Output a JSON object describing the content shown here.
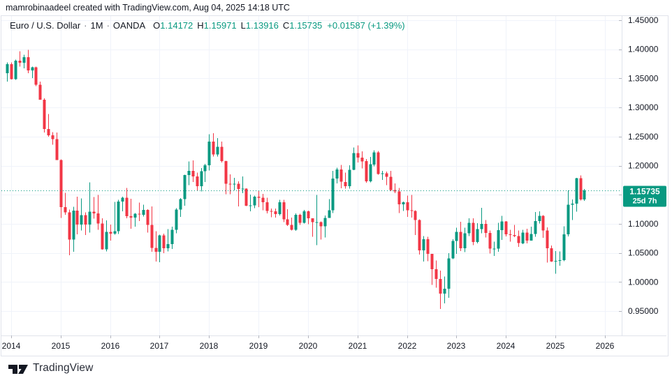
{
  "attribution": "mamrobinaadeel created with TradingView.com, Aug 04, 2025 14:18 UTC",
  "legend": {
    "symbol_title": "Euro / U.S. Dollar",
    "dot": "·",
    "interval": "1M",
    "exchange": "OANDA",
    "ohlc": [
      {
        "label": "O",
        "value": "1.14172"
      },
      {
        "label": "H",
        "value": "1.15971"
      },
      {
        "label": "L",
        "value": "1.13916"
      },
      {
        "label": "C",
        "value": "1.15735"
      }
    ],
    "change": "+0.01587 (+1.39%)"
  },
  "price_scale": {
    "ticks": [
      "1.45000",
      "1.40000",
      "1.35000",
      "1.30000",
      "1.25000",
      "1.20000",
      "1.15000",
      "1.10000",
      "1.05000",
      "1.00000",
      "0.95000"
    ],
    "last_price_label": "1.15735",
    "countdown": "25d 7h"
  },
  "time_scale": {
    "ticks": [
      "2014",
      "2015",
      "2016",
      "2017",
      "2018",
      "2019",
      "2020",
      "2021",
      "2022",
      "2023",
      "2024",
      "2025",
      "2026"
    ]
  },
  "footer": {
    "logo_text": "TradingView"
  },
  "colors": {
    "up": "#089981",
    "down": "#F23645",
    "text": "#131722",
    "grid": "#F0F3FA",
    "border": "#E0E3EB",
    "tick": "#B2B5BE",
    "badge_bg": "#089981",
    "badge_text": "#ffffff"
  },
  "chart_data": {
    "type": "candlestick",
    "title": "Euro / U.S. Dollar, 1M, OANDA",
    "symbol": "EURUSD",
    "timeframe": "1M",
    "start_month": "2013-12",
    "x_tick_years": [
      2014,
      2015,
      2016,
      2017,
      2018,
      2019,
      2020,
      2021,
      2022,
      2023,
      2024,
      2025,
      2026
    ],
    "y_ticks": [
      1.45,
      1.4,
      1.35,
      1.3,
      1.25,
      1.2,
      1.15,
      1.1,
      1.05,
      1.0,
      0.95
    ],
    "ylim": [
      0.933,
      1.4575
    ],
    "grid": true,
    "last_price": 1.15735,
    "candles": [
      [
        1.359,
        1.3772,
        1.3442,
        1.3743
      ],
      [
        1.3743,
        1.3772,
        1.348,
        1.3489
      ],
      [
        1.3489,
        1.3824,
        1.3475,
        1.3802
      ],
      [
        1.3802,
        1.3967,
        1.3704,
        1.377
      ],
      [
        1.377,
        1.3906,
        1.3673,
        1.3867
      ],
      [
        1.3867,
        1.3993,
        1.3586,
        1.3635
      ],
      [
        1.3635,
        1.37,
        1.3503,
        1.3692
      ],
      [
        1.3692,
        1.3701,
        1.3366,
        1.339
      ],
      [
        1.339,
        1.3445,
        1.3133,
        1.3133
      ],
      [
        1.3133,
        1.316,
        1.2571,
        1.2632
      ],
      [
        1.2632,
        1.2886,
        1.25,
        1.2524
      ],
      [
        1.2524,
        1.2577,
        1.2357,
        1.2453
      ],
      [
        1.2453,
        1.257,
        1.2096,
        1.2098
      ],
      [
        1.2098,
        1.2109,
        1.1098,
        1.1288
      ],
      [
        1.1288,
        1.1534,
        1.1155,
        1.1196
      ],
      [
        1.1196,
        1.1242,
        1.0458,
        1.0731
      ],
      [
        1.0731,
        1.129,
        1.0519,
        1.1224
      ],
      [
        1.1224,
        1.1467,
        1.0819,
        1.0986
      ],
      [
        1.0986,
        1.1436,
        1.0887,
        1.1147
      ],
      [
        1.1147,
        1.1196,
        1.0808,
        1.0984
      ],
      [
        1.0984,
        1.1714,
        1.0848,
        1.1211
      ],
      [
        1.1211,
        1.146,
        1.1087,
        1.1177
      ],
      [
        1.1177,
        1.1495,
        1.0897,
        1.1006
      ],
      [
        1.1006,
        1.1095,
        1.0558,
        1.0563
      ],
      [
        1.0563,
        1.106,
        1.0524,
        1.0862
      ],
      [
        1.0862,
        1.0985,
        1.0711,
        1.0831
      ],
      [
        1.0831,
        1.1376,
        1.081,
        1.0873
      ],
      [
        1.0873,
        1.1412,
        1.0826,
        1.138
      ],
      [
        1.138,
        1.1465,
        1.1217,
        1.1451
      ],
      [
        1.1451,
        1.1616,
        1.1097,
        1.1132
      ],
      [
        1.1132,
        1.1428,
        1.0912,
        1.1106
      ],
      [
        1.1106,
        1.1186,
        1.0952,
        1.1175
      ],
      [
        1.1175,
        1.1366,
        1.1046,
        1.1158
      ],
      [
        1.1158,
        1.1327,
        1.1123,
        1.1238
      ],
      [
        1.1238,
        1.125,
        1.085,
        1.0981
      ],
      [
        1.0981,
        1.1299,
        1.0518,
        1.0587
      ],
      [
        1.0587,
        1.0873,
        1.0352,
        1.0517
      ],
      [
        1.0517,
        1.0812,
        1.0341,
        1.0798
      ],
      [
        1.0798,
        1.0829,
        1.0494,
        1.0576
      ],
      [
        1.0576,
        1.0906,
        1.0525,
        1.0652
      ],
      [
        1.0652,
        1.0951,
        1.057,
        1.0895
      ],
      [
        1.0895,
        1.1268,
        1.0839,
        1.1244
      ],
      [
        1.1244,
        1.1445,
        1.1119,
        1.1426
      ],
      [
        1.1426,
        1.1846,
        1.1312,
        1.184
      ],
      [
        1.184,
        1.207,
        1.1662,
        1.191
      ],
      [
        1.191,
        1.2092,
        1.1717,
        1.1814
      ],
      [
        1.1814,
        1.188,
        1.1574,
        1.1646
      ],
      [
        1.1646,
        1.1961,
        1.1554,
        1.1904
      ],
      [
        1.1904,
        1.203,
        1.1718,
        1.2005
      ],
      [
        1.2005,
        1.2537,
        1.1916,
        1.2415
      ],
      [
        1.2415,
        1.2556,
        1.2155,
        1.2193
      ],
      [
        1.2193,
        1.2476,
        1.2157,
        1.2324
      ],
      [
        1.2324,
        1.2414,
        1.2056,
        1.2078
      ],
      [
        1.2078,
        1.2086,
        1.151,
        1.1691
      ],
      [
        1.1691,
        1.1852,
        1.1508,
        1.1684
      ],
      [
        1.1684,
        1.1791,
        1.1575,
        1.169
      ],
      [
        1.169,
        1.1733,
        1.1301,
        1.1601
      ],
      [
        1.1601,
        1.1815,
        1.1526,
        1.1604
      ],
      [
        1.1604,
        1.161,
        1.1302,
        1.1312
      ],
      [
        1.1312,
        1.15,
        1.1216,
        1.1317
      ],
      [
        1.1317,
        1.1486,
        1.1269,
        1.1467
      ],
      [
        1.1467,
        1.157,
        1.1289,
        1.1448
      ],
      [
        1.1448,
        1.1514,
        1.1234,
        1.1373
      ],
      [
        1.1373,
        1.1448,
        1.1176,
        1.1218
      ],
      [
        1.1218,
        1.1265,
        1.1111,
        1.1215
      ],
      [
        1.1215,
        1.1265,
        1.1107,
        1.1168
      ],
      [
        1.1168,
        1.1412,
        1.1141,
        1.1373
      ],
      [
        1.1373,
        1.1412,
        1.1027,
        1.1075
      ],
      [
        1.1075,
        1.125,
        1.0963,
        1.0981
      ],
      [
        1.0981,
        1.1109,
        1.0885,
        1.0899
      ],
      [
        1.0899,
        1.1179,
        1.0879,
        1.1152
      ],
      [
        1.1152,
        1.1175,
        1.0981,
        1.1018
      ],
      [
        1.1018,
        1.1239,
        1.1003,
        1.1213
      ],
      [
        1.1213,
        1.1225,
        1.0992,
        1.1093
      ],
      [
        1.1093,
        1.1096,
        1.0778,
        1.1026
      ],
      [
        1.1026,
        1.1495,
        1.0636,
        1.1031
      ],
      [
        1.1031,
        1.1039,
        1.0727,
        1.0955
      ],
      [
        1.0955,
        1.1145,
        1.0766,
        1.1101
      ],
      [
        1.1101,
        1.1422,
        1.1101,
        1.1234
      ],
      [
        1.1234,
        1.1909,
        1.1185,
        1.1778
      ],
      [
        1.1778,
        1.1966,
        1.1696,
        1.1935
      ],
      [
        1.1935,
        1.2011,
        1.1612,
        1.1721
      ],
      [
        1.1721,
        1.1881,
        1.1603,
        1.1647
      ],
      [
        1.1647,
        1.2004,
        1.1602,
        1.1927
      ],
      [
        1.1927,
        1.231,
        1.1923,
        1.2216
      ],
      [
        1.2216,
        1.2349,
        1.2054,
        1.2136
      ],
      [
        1.2136,
        1.2243,
        1.1952,
        1.2075
      ],
      [
        1.2075,
        1.2113,
        1.1704,
        1.173
      ],
      [
        1.173,
        1.215,
        1.1713,
        1.2021
      ],
      [
        1.2021,
        1.2266,
        1.1986,
        1.2227
      ],
      [
        1.2227,
        1.2254,
        1.1845,
        1.1858
      ],
      [
        1.1858,
        1.1909,
        1.1752,
        1.187
      ],
      [
        1.187,
        1.1899,
        1.1664,
        1.181
      ],
      [
        1.181,
        1.1909,
        1.1563,
        1.158
      ],
      [
        1.158,
        1.1692,
        1.1524,
        1.1558
      ],
      [
        1.1558,
        1.1616,
        1.1186,
        1.1336
      ],
      [
        1.1336,
        1.1383,
        1.1221,
        1.137
      ],
      [
        1.137,
        1.1483,
        1.1121,
        1.1235
      ],
      [
        1.1235,
        1.1495,
        1.1106,
        1.1219
      ],
      [
        1.1219,
        1.1234,
        1.0806,
        1.1067
      ],
      [
        1.1067,
        1.1076,
        1.0471,
        1.0545
      ],
      [
        1.0545,
        1.0787,
        1.0349,
        1.0734
      ],
      [
        1.0734,
        1.0774,
        1.0359,
        1.0484
      ],
      [
        1.0484,
        1.0486,
        0.9952,
        1.022
      ],
      [
        1.022,
        1.0369,
        0.99,
        1.0054
      ],
      [
        1.0054,
        1.0198,
        0.9536,
        0.9802
      ],
      [
        0.9802,
        1.0094,
        0.9632,
        0.9881
      ],
      [
        0.9881,
        1.0497,
        0.973,
        1.0405
      ],
      [
        1.0405,
        1.0736,
        1.0393,
        1.0705
      ],
      [
        1.0705,
        1.093,
        1.0482,
        1.0863
      ],
      [
        1.0863,
        1.1033,
        1.0533,
        1.0577
      ],
      [
        1.0577,
        1.093,
        1.0516,
        1.0839
      ],
      [
        1.0839,
        1.1095,
        1.0788,
        1.1019
      ],
      [
        1.1019,
        1.1092,
        1.0635,
        1.0687
      ],
      [
        1.0687,
        1.1012,
        1.0662,
        1.0909
      ],
      [
        1.0909,
        1.1276,
        1.0834,
        1.0996
      ],
      [
        1.0996,
        1.1065,
        1.0766,
        1.0843
      ],
      [
        1.0843,
        1.0882,
        1.0488,
        1.0573
      ],
      [
        1.0573,
        1.0694,
        1.0448,
        1.0575
      ],
      [
        1.0575,
        1.1017,
        1.0517,
        1.0888
      ],
      [
        1.0888,
        1.1139,
        1.0723,
        1.1039
      ],
      [
        1.1039,
        1.1046,
        1.078,
        1.0818
      ],
      [
        1.0818,
        1.0898,
        1.0695,
        1.0805
      ],
      [
        1.0805,
        1.0981,
        1.0768,
        1.079
      ],
      [
        1.079,
        1.0885,
        1.0601,
        1.0666
      ],
      [
        1.0666,
        1.0895,
        1.0649,
        1.0848
      ],
      [
        1.0848,
        1.0916,
        1.0666,
        1.0713
      ],
      [
        1.0713,
        1.0948,
        1.0709,
        1.0826
      ],
      [
        1.0826,
        1.1202,
        1.0777,
        1.1048
      ],
      [
        1.1048,
        1.1214,
        1.1002,
        1.1135
      ],
      [
        1.1135,
        1.1147,
        1.0761,
        1.0884
      ],
      [
        1.0884,
        1.0937,
        1.0333,
        1.0577
      ],
      [
        1.0577,
        1.063,
        1.0344,
        1.0354
      ],
      [
        1.0354,
        1.0533,
        1.0141,
        1.0362
      ],
      [
        1.0362,
        1.0528,
        1.0282,
        1.0375
      ],
      [
        1.0375,
        1.0954,
        1.036,
        1.0816
      ],
      [
        1.0816,
        1.1573,
        1.078,
        1.1328
      ],
      [
        1.1328,
        1.1418,
        1.1065,
        1.1347
      ],
      [
        1.1347,
        1.1788,
        1.121,
        1.1787
      ],
      [
        1.1787,
        1.183,
        1.1401,
        1.1417
      ],
      [
        1.14172,
        1.15971,
        1.13916,
        1.15735
      ]
    ]
  }
}
